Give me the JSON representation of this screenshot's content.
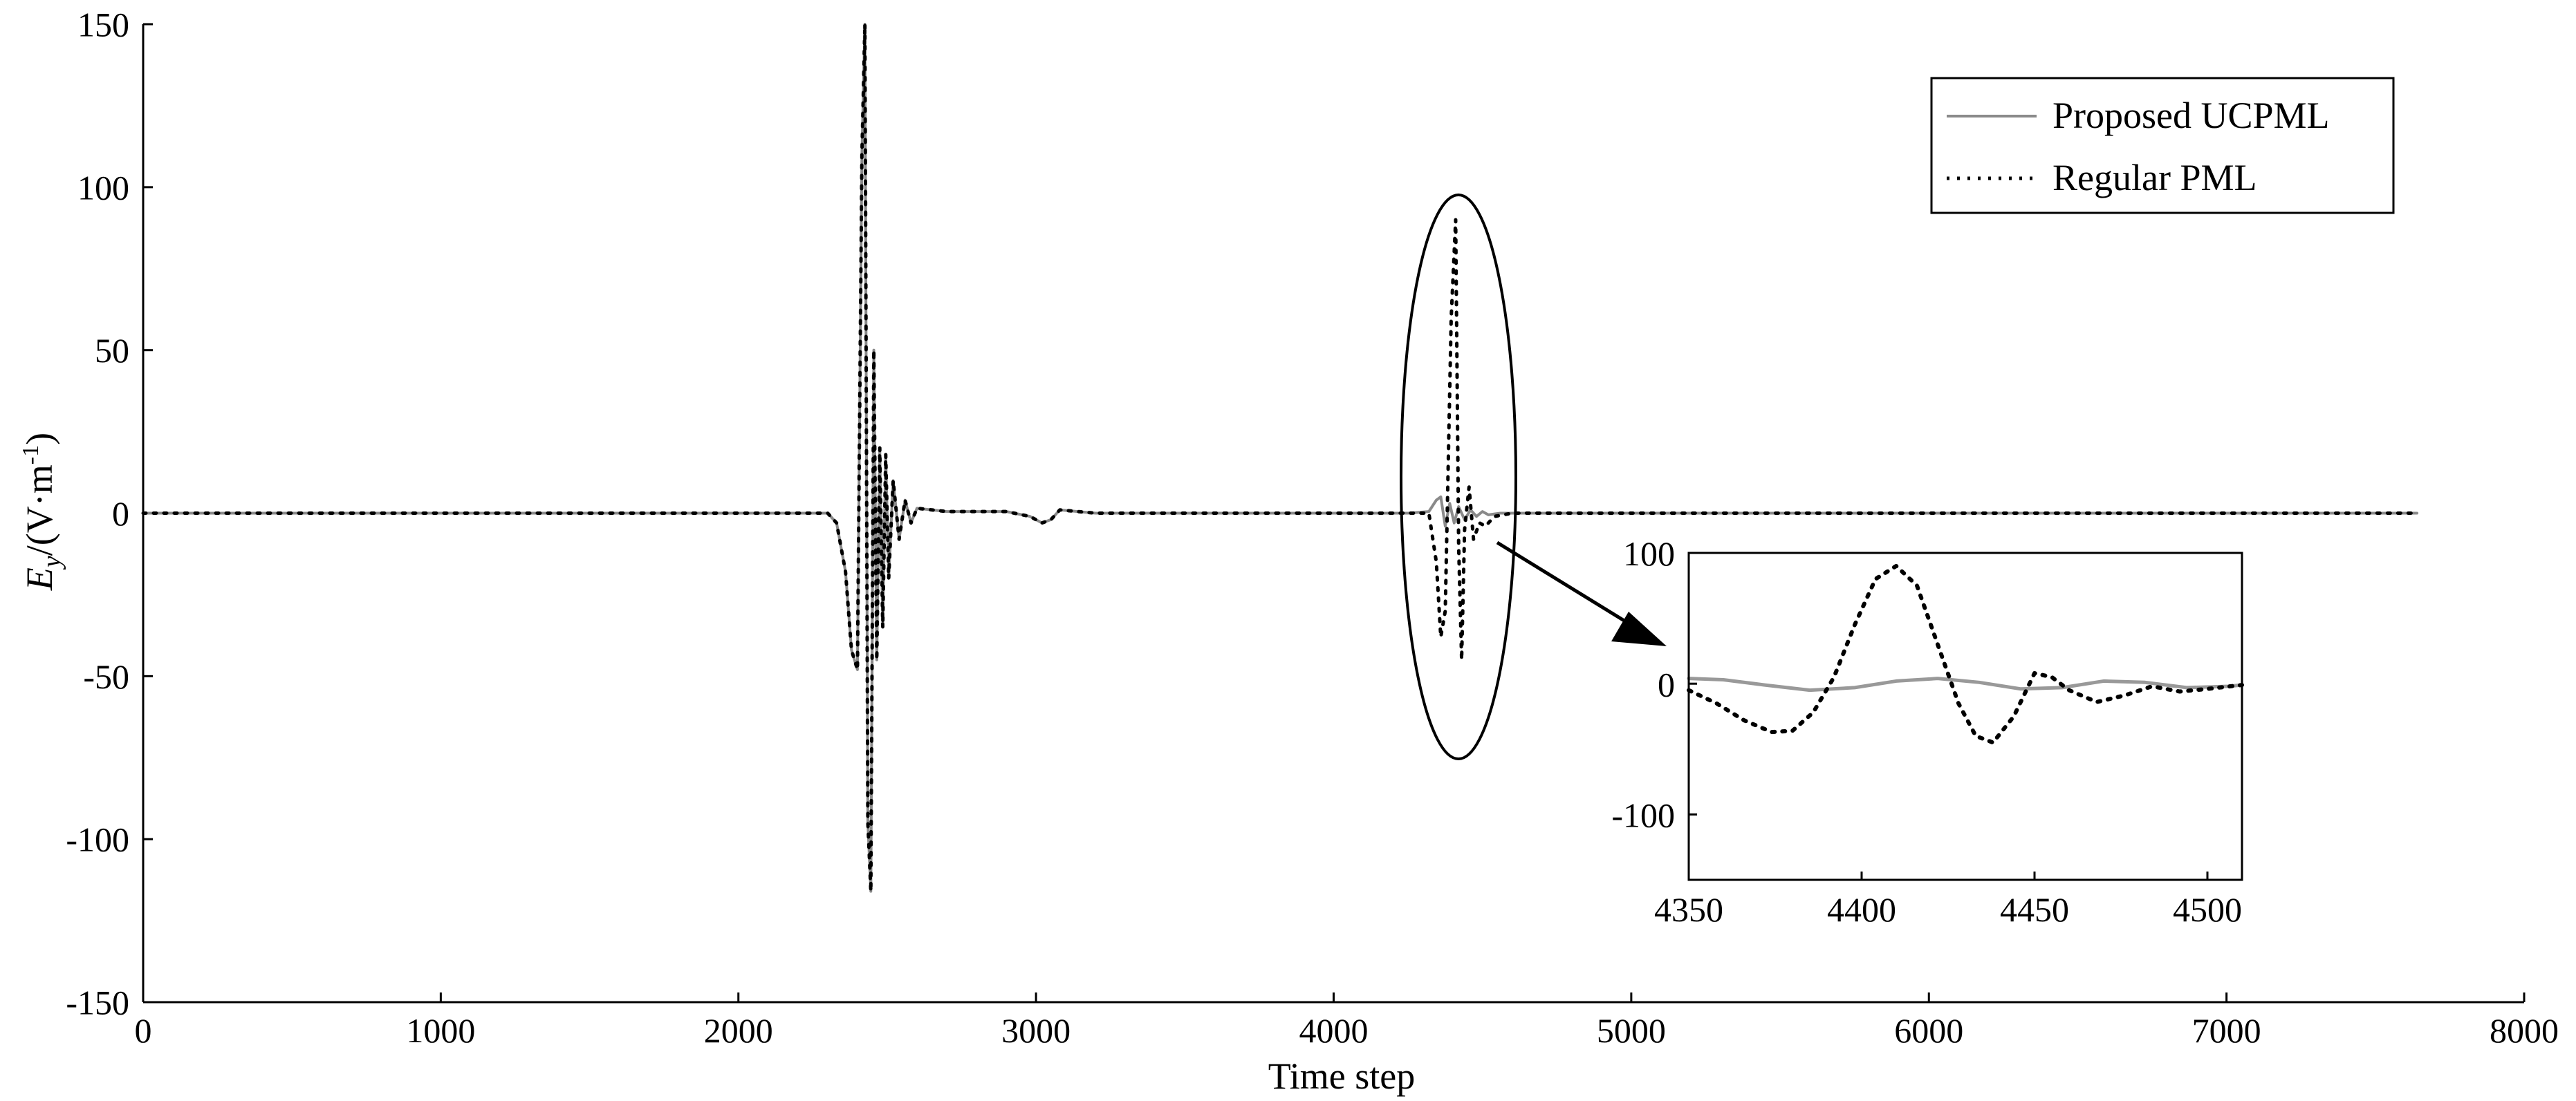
{
  "chart_data": [
    {
      "type": "line",
      "title": "",
      "xlabel": "Time step",
      "ylabel_parts": {
        "symbol": "E",
        "subscript": "y",
        "unit_open": "/(V·m",
        "unit_exp": "-1",
        "unit_close": ")"
      },
      "xlim": [
        0,
        8000
      ],
      "ylim": [
        -150,
        150
      ],
      "xticks": [
        0,
        1000,
        2000,
        3000,
        4000,
        5000,
        6000,
        7000,
        8000
      ],
      "yticks": [
        -150,
        -100,
        -50,
        0,
        50,
        100,
        150
      ],
      "grid": false,
      "legend_position": "top-right",
      "series": [
        {
          "name": "Proposed UCPML",
          "color": "#8a8a8a",
          "style": "solid",
          "x": [
            0,
            2300,
            2330,
            2360,
            2380,
            2400,
            2415,
            2425,
            2435,
            2445,
            2455,
            2465,
            2475,
            2485,
            2495,
            2505,
            2520,
            2540,
            2560,
            2580,
            2600,
            2650,
            2700,
            2900,
            2980,
            3020,
            3050,
            3080,
            3200,
            4250,
            4320,
            4345,
            4360,
            4375,
            4390,
            4405,
            4420,
            4440,
            4460,
            4480,
            4500,
            4520,
            4560,
            4600,
            7640
          ],
          "y": [
            0,
            0,
            -3,
            -18,
            -42,
            -48,
            110,
            150,
            -95,
            -116,
            50,
            -45,
            20,
            -35,
            18,
            -20,
            10,
            -8,
            4,
            -3,
            1.5,
            1,
            0.5,
            0.5,
            -1,
            -3,
            -2,
            1,
            0,
            0,
            0.5,
            4,
            5,
            -4,
            3,
            -3,
            2,
            -2,
            1,
            -1,
            0.5,
            -0.5,
            0,
            0,
            0
          ]
        },
        {
          "name": "Regular PML",
          "color": "#000000",
          "style": "dotted",
          "x": [
            0,
            2300,
            2330,
            2360,
            2380,
            2400,
            2415,
            2425,
            2435,
            2445,
            2455,
            2465,
            2475,
            2485,
            2495,
            2505,
            2520,
            2540,
            2560,
            2580,
            2600,
            2650,
            2700,
            2900,
            2980,
            3020,
            3050,
            3080,
            3200,
            4250,
            4320,
            4345,
            4360,
            4375,
            4395,
            4410,
            4420,
            4430,
            4440,
            4455,
            4470,
            4490,
            4510,
            4540,
            4600,
            7640
          ],
          "y": [
            0,
            0,
            -3,
            -18,
            -42,
            -48,
            110,
            150,
            -95,
            -116,
            50,
            -45,
            20,
            -35,
            18,
            -20,
            10,
            -8,
            4,
            -3,
            1.5,
            1,
            0.5,
            0.5,
            -1,
            -3,
            -2,
            1,
            0,
            0,
            0,
            -15,
            -38,
            -30,
            60,
            90,
            -10,
            -45,
            -5,
            8,
            -8,
            -3,
            -4,
            -1,
            0,
            0
          ]
        }
      ]
    },
    {
      "type": "line",
      "title": "",
      "xlabel": "",
      "ylabel": "",
      "xlim": [
        4350,
        4510
      ],
      "ylim": [
        -150,
        100
      ],
      "xticks": [
        4350,
        4400,
        4450,
        4500
      ],
      "yticks": [
        -100,
        0,
        100
      ],
      "grid": false,
      "series": [
        {
          "name": "Proposed UCPML",
          "color": "#999999",
          "style": "solid",
          "x": [
            4350,
            4360,
            4372,
            4385,
            4398,
            4410,
            4422,
            4434,
            4446,
            4458,
            4470,
            4482,
            4494,
            4506,
            4510
          ],
          "y": [
            4,
            3,
            -1,
            -5,
            -3,
            2,
            4,
            1,
            -4,
            -3,
            2,
            1,
            -3,
            -2,
            -1
          ]
        },
        {
          "name": "Regular PML",
          "color": "#000000",
          "style": "dotted",
          "x": [
            4350,
            4358,
            4366,
            4374,
            4380,
            4386,
            4392,
            4398,
            4404,
            4410,
            4416,
            4422,
            4428,
            4433,
            4438,
            4444,
            4450,
            4455,
            4460,
            4468,
            4476,
            4484,
            4492,
            4500,
            4510
          ],
          "y": [
            -5,
            -15,
            -28,
            -37,
            -36,
            -22,
            5,
            45,
            80,
            90,
            75,
            30,
            -15,
            -40,
            -45,
            -25,
            8,
            5,
            -5,
            -14,
            -9,
            -2,
            -6,
            -4,
            -1
          ]
        }
      ]
    }
  ],
  "legend": {
    "items": [
      {
        "label": "Proposed UCPML",
        "color": "#8a8a8a",
        "style": "solid"
      },
      {
        "label": "Regular PML",
        "color": "#000000",
        "style": "dotted"
      }
    ]
  }
}
